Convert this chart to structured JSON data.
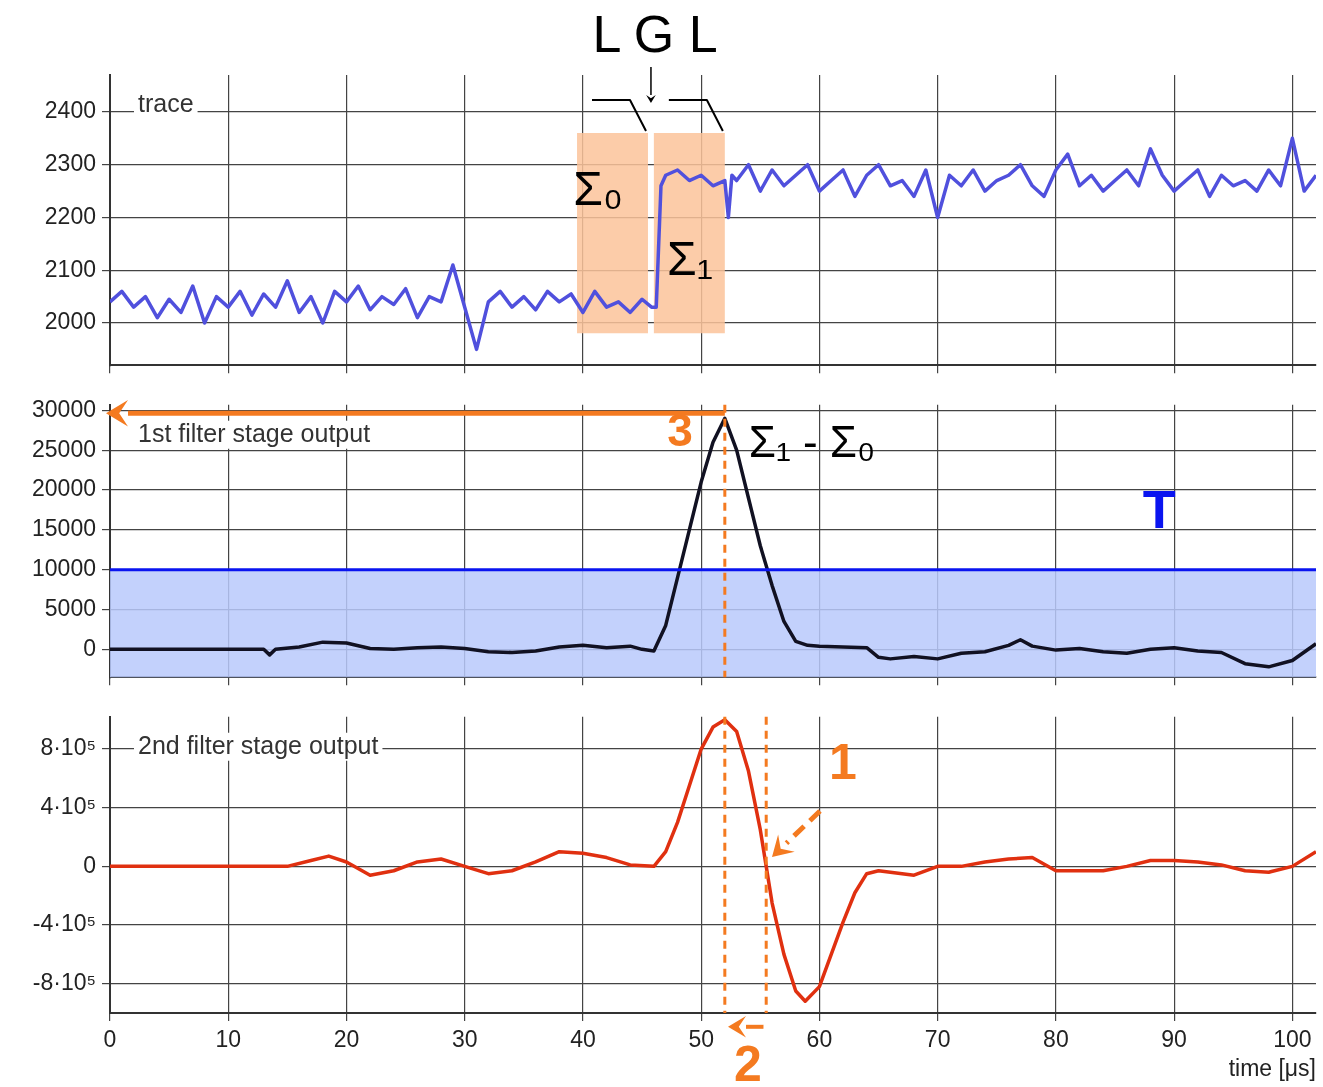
{
  "chart_data": [
    {
      "type": "line",
      "title": "trace",
      "annotations": [
        "L G L",
        "Σ₀",
        "Σ₁"
      ],
      "x": [
        0,
        1,
        2,
        3,
        4,
        5,
        6,
        7,
        8,
        9,
        10,
        11,
        12,
        13,
        14,
        15,
        16,
        17,
        18,
        19,
        20,
        21,
        22,
        23,
        24,
        25,
        26,
        27,
        28,
        29,
        30,
        31,
        32,
        33,
        34,
        35,
        36,
        37,
        38,
        39,
        40,
        41,
        42,
        43,
        44,
        45,
        45.8,
        46.2,
        46.6,
        47,
        48,
        49,
        50,
        51,
        52,
        52.3,
        52.6,
        53,
        54,
        55,
        56,
        57,
        58,
        59,
        60,
        61,
        62,
        63,
        64,
        65,
        66,
        67,
        68,
        69,
        70,
        71,
        72,
        73,
        74,
        75,
        76,
        77,
        78,
        79,
        80,
        81,
        82,
        83,
        84,
        85,
        86,
        87,
        88,
        89,
        90,
        91,
        92,
        93,
        94,
        95,
        96,
        97,
        98,
        99,
        100,
        101,
        102
      ],
      "series": [
        {
          "color": "#5050dd",
          "values": [
            2040,
            2060,
            2030,
            2050,
            2010,
            2045,
            2020,
            2070,
            2000,
            2050,
            2030,
            2060,
            2015,
            2055,
            2030,
            2080,
            2020,
            2050,
            2000,
            2060,
            2040,
            2070,
            2025,
            2050,
            2035,
            2065,
            2010,
            2050,
            2040,
            2110,
            2030,
            1950,
            2040,
            2060,
            2030,
            2050,
            2025,
            2060,
            2040,
            2055,
            2020,
            2060,
            2030,
            2040,
            2020,
            2045,
            2030,
            2030,
            2260,
            2280,
            2290,
            2270,
            2280,
            2260,
            2270,
            2200,
            2280,
            2270,
            2300,
            2250,
            2290,
            2260,
            2280,
            2300,
            2250,
            2270,
            2290,
            2240,
            2280,
            2300,
            2260,
            2270,
            2240,
            2290,
            2200,
            2280,
            2260,
            2290,
            2250,
            2270,
            2280,
            2300,
            2260,
            2240,
            2290,
            2320,
            2260,
            2280,
            2250,
            2270,
            2290,
            2260,
            2330,
            2280,
            2250,
            2270,
            2290,
            2240,
            2280,
            2260,
            2270,
            2250,
            2290,
            2260,
            2350,
            2250,
            2280
          ]
        }
      ],
      "xlim": [
        0,
        102
      ],
      "xticks": [
        0,
        10,
        20,
        30,
        40,
        50,
        60,
        70,
        80,
        90,
        100
      ],
      "ylim": [
        1920,
        2470
      ],
      "yticks": [
        2000,
        2100,
        2200,
        2300,
        2400
      ],
      "bands": [
        {
          "axis": "x",
          "from": 39.5,
          "to": 45.5,
          "color": "#fbc39a"
        },
        {
          "axis": "x",
          "from": 46,
          "to": 52,
          "color": "#fbc39a"
        }
      ],
      "grid": true,
      "legend": false,
      "tick_labels": "y",
      "marker": "none",
      "line_style": "solid"
    },
    {
      "type": "line",
      "title": "1st filter stage output",
      "annotations": [
        "3",
        "Σ₁ - Σ₀"
      ],
      "x": [
        0,
        13,
        13.5,
        14,
        16,
        18,
        20,
        22,
        24,
        26,
        28,
        30,
        32,
        34,
        36,
        38,
        40,
        42,
        44,
        45,
        46,
        47,
        48,
        49,
        50,
        51,
        52,
        53,
        54,
        55,
        56,
        57,
        58,
        59,
        60,
        62,
        64,
        65,
        66,
        68,
        70,
        72,
        74,
        76,
        77,
        78,
        80,
        82,
        84,
        86,
        88,
        90,
        92,
        94,
        96,
        98,
        100,
        102
      ],
      "series": [
        {
          "color": "#111122",
          "values": [
            0,
            0,
            -700,
            0,
            300,
            900,
            800,
            100,
            0,
            200,
            300,
            100,
            -300,
            -400,
            -200,
            300,
            500,
            200,
            400,
            0,
            -200,
            3000,
            9000,
            15000,
            21000,
            26000,
            29000,
            25000,
            19000,
            13000,
            8000,
            3500,
            1000,
            500,
            400,
            300,
            200,
            -1000,
            -1200,
            -900,
            -1200,
            -500,
            -300,
            500,
            1200,
            400,
            -100,
            100,
            -300,
            -500,
            0,
            200,
            -200,
            -400,
            -1800,
            -2200,
            -1400,
            700
          ]
        }
      ],
      "xlim": [
        0,
        102
      ],
      "xticks": [
        0,
        10,
        20,
        30,
        40,
        50,
        60,
        70,
        80,
        90,
        100
      ],
      "ylim": [
        -3500,
        30700
      ],
      "yticks": [
        0,
        5000,
        10000,
        15000,
        20000,
        25000,
        30000
      ],
      "bands": [
        {
          "axis": "y",
          "from": -3500,
          "to": 10000,
          "color": "#b8c9fb"
        }
      ],
      "ref_lines": [
        {
          "axis": "y",
          "value": 10000,
          "label": "T",
          "color": "#0a14f0",
          "line_style": "solid"
        },
        {
          "axis": "x",
          "value": 52,
          "label": null,
          "color": "#f47a20",
          "line_style": "dashed"
        }
      ],
      "grid": true,
      "legend": false,
      "tick_labels": "y",
      "marker": "none",
      "line_style": "solid"
    },
    {
      "type": "line",
      "title": "2nd filter stage output",
      "xlabel": "time [μs]",
      "annotations": [
        "1",
        "2"
      ],
      "x": [
        0,
        15,
        17,
        18.5,
        20,
        22,
        24,
        26,
        28,
        30,
        32,
        34,
        36,
        38,
        40,
        42,
        44,
        46,
        47,
        48,
        49,
        50,
        51,
        52,
        53,
        54,
        55,
        55.5,
        56,
        57,
        58,
        58.8,
        60,
        61,
        62,
        63,
        64,
        65,
        66,
        68,
        70,
        72,
        74,
        76,
        78,
        80,
        82,
        84,
        86,
        88,
        90,
        92,
        94,
        96,
        98,
        100,
        102
      ],
      "series": [
        {
          "color": "#e03010",
          "values": [
            0,
            0,
            40000,
            70000,
            30000,
            -60000,
            -30000,
            30000,
            50000,
            0,
            -50000,
            -30000,
            30000,
            100000,
            90000,
            60000,
            10000,
            0,
            100000,
            300000,
            550000,
            800000,
            950000,
            1000000,
            920000,
            650000,
            250000,
            0,
            -250000,
            -600000,
            -850000,
            -920000,
            -820000,
            -600000,
            -380000,
            -180000,
            -50000,
            -30000,
            -40000,
            -60000,
            0,
            0,
            30000,
            50000,
            60000,
            -30000,
            -30000,
            -30000,
            0,
            40000,
            40000,
            30000,
            10000,
            -30000,
            -40000,
            0,
            100000
          ]
        }
      ],
      "xlim": [
        0,
        102
      ],
      "xticks": [
        0,
        10,
        20,
        30,
        40,
        50,
        60,
        70,
        80,
        90,
        100
      ],
      "ylim": [
        -1000000,
        1020000
      ],
      "yticks": [
        {
          "value": -800000,
          "label": "-8·10⁵"
        },
        {
          "value": -400000,
          "label": "-4·10⁵"
        },
        0,
        {
          "value": 400000,
          "label": "4·10⁵"
        },
        {
          "value": 800000,
          "label": "8·10⁵"
        }
      ],
      "ref_lines": [
        {
          "axis": "x",
          "value": 52,
          "label": null,
          "color": "#f47a20",
          "line_style": "dashed"
        },
        {
          "axis": "x",
          "value": 55.5,
          "label": null,
          "color": "#f47a20",
          "line_style": "dashed"
        }
      ],
      "grid": true,
      "legend": false,
      "marker": "none",
      "line_style": "solid"
    }
  ]
}
